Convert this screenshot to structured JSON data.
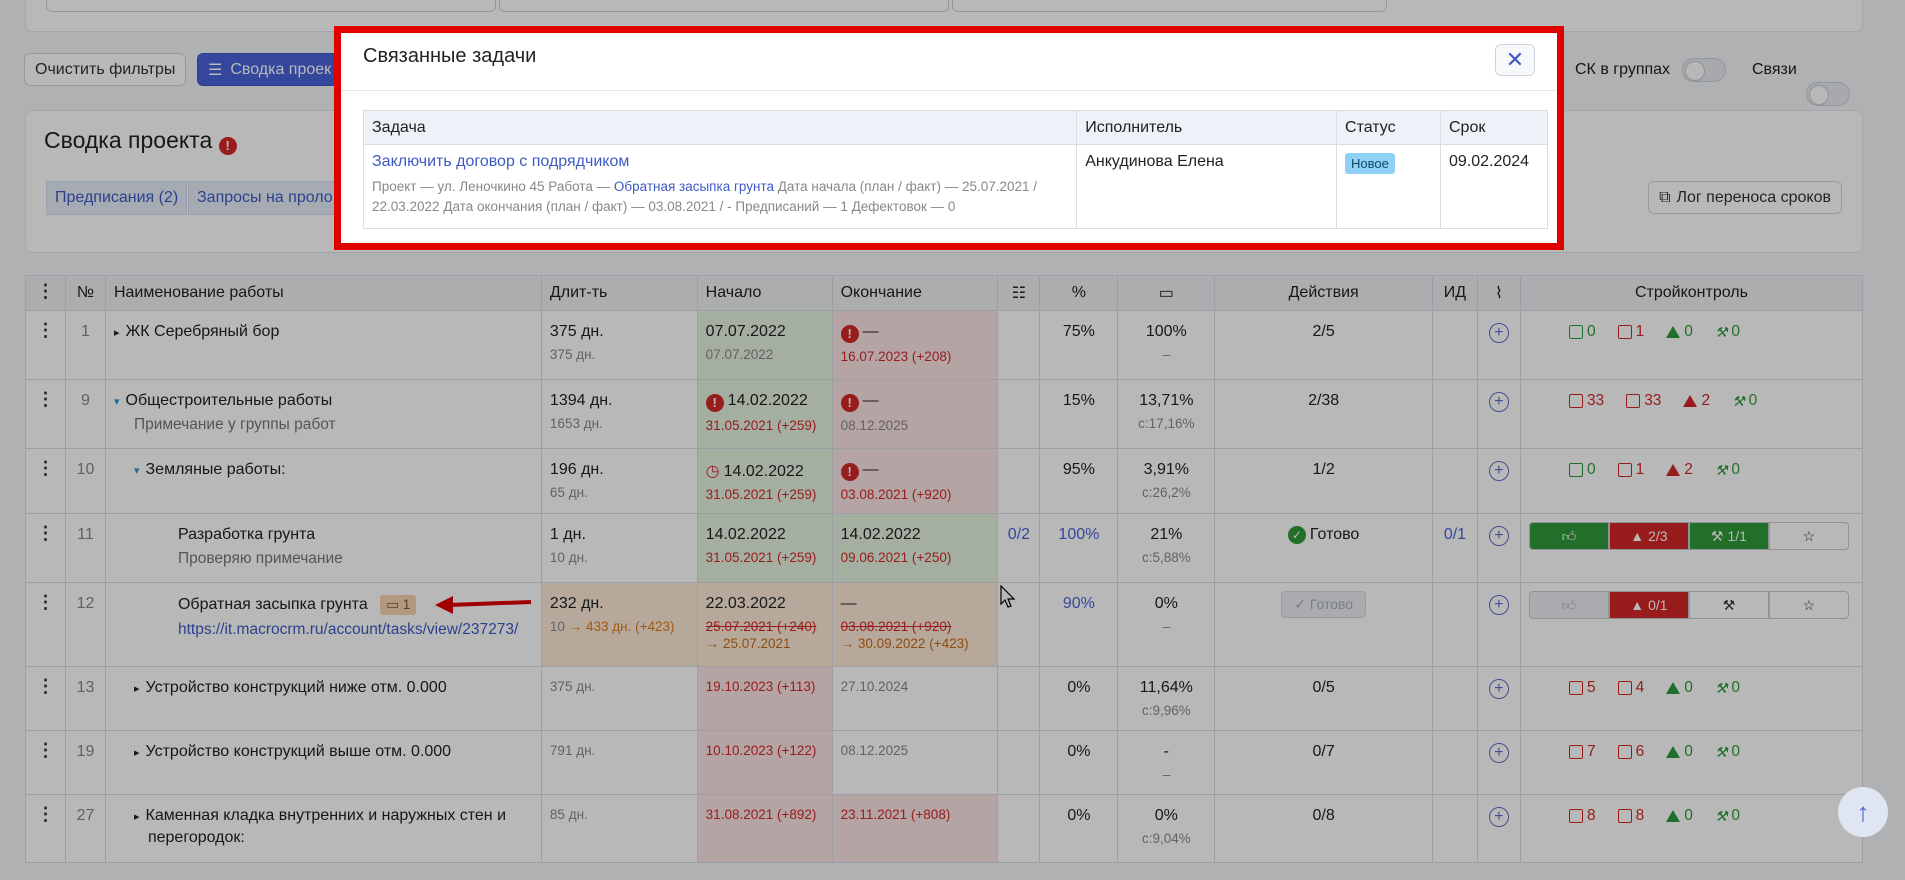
{
  "toolbar": {
    "clear_filters": "Очистить фильтры",
    "summary_btn": "Сводка проек",
    "sk_groups": "СК в группах",
    "links": "Связи"
  },
  "card": {
    "title": "Сводка проекта",
    "tab1": "Предписания (2)",
    "tab2": "Запросы на проло",
    "log_btn": "Лог переноса сроков"
  },
  "grid": {
    "headers": {
      "num": "№",
      "name": "Наименование работы",
      "dur": "Длит-ть",
      "start": "Начало",
      "end": "Окончание",
      "pct": "%",
      "actions": "Действия",
      "id": "ИД",
      "sk": "Стройконтроль"
    },
    "rows": [
      {
        "num": "1",
        "name": "ЖК Серебряный бор",
        "note": "",
        "dur": "375 дн.",
        "dur_sub": "375 дн.",
        "start": "07.07.2022",
        "start_sub": "07.07.2022",
        "end": "—",
        "end_sub": "16.07.2023 (+208)",
        "pct": "75%",
        "c1": "100%",
        "c1_sub": "–",
        "act": "2/5",
        "sk": [
          "0",
          "1",
          "0",
          "0"
        ]
      },
      {
        "num": "9",
        "name": "Общестроительные работы",
        "note": "Примечание у группы работ",
        "dur": "1394 дн.",
        "dur_sub": "1653 дн.",
        "start": "14.02.2022",
        "start_sub": "31.05.2021 (+259)",
        "end": "—",
        "end_sub": "08.12.2025",
        "pct": "15%",
        "c1": "13,71%",
        "c1_sub": "с:17,16%",
        "act": "2/38",
        "sk": [
          "33",
          "33",
          "2",
          "0"
        ]
      },
      {
        "num": "10",
        "name": "Земляные работы:",
        "note": "",
        "dur": "196 дн.",
        "dur_sub": "65 дн.",
        "start": "14.02.2022",
        "start_sub": "31.05.2021 (+259)",
        "end": "—",
        "end_sub": "03.08.2021 (+920)",
        "pct": "95%",
        "c1": "3,91%",
        "c1_sub": "с:26,2%",
        "act": "1/2",
        "sk": [
          "0",
          "1",
          "2",
          "0"
        ]
      },
      {
        "num": "11",
        "name": "Разработка грунта",
        "note": "Проверяю примечание",
        "dur": "1 дн.",
        "dur_sub": "10 дн.",
        "start": "14.02.2022",
        "start_sub": "31.05.2021 (+259)",
        "end": "14.02.2022",
        "end_sub": "09.06.2021 (+250)",
        "checks": "0/2",
        "pct": "100%",
        "c1": "21%",
        "c1_sub": "с:5,88%",
        "act": "Готово",
        "idv": "0/1",
        "sk_warn": "2/3",
        "sk_ham": "1/1"
      },
      {
        "num": "12",
        "name": "Обратная засыпка грунта",
        "badge": "1",
        "link": "https://it.macrocrm.ru/account/tasks/view/237273/",
        "dur": "232 дн.",
        "dur_a": "10",
        "dur_b": "433 дн. (+423)",
        "start": "22.03.2022",
        "start_s": "25.07.2021 (+240)",
        "start_n": "25.07.2021",
        "end": "—",
        "end_s": "03.08.2021 (+920)",
        "end_n": "30.09.2022 (+423)",
        "pct": "90%",
        "c1": "0%",
        "c1_sub": "–",
        "act": "Готово",
        "sk_warn": "0/1"
      },
      {
        "num": "13",
        "name": "Устройство конструкций ниже отм. 0.000",
        "dur_sub": "375 дн.",
        "start_sub": "19.10.2023 (+113)",
        "end_sub": "27.10.2024",
        "pct": "0%",
        "c1": "11,64%",
        "c1_sub": "с:9,96%",
        "act": "0/5",
        "sk": [
          "5",
          "4",
          "0",
          "0"
        ]
      },
      {
        "num": "19",
        "name": "Устройство конструкций выше отм. 0.000",
        "dur_sub": "791 дн.",
        "start_sub": "10.10.2023 (+122)",
        "end_sub": "08.12.2025",
        "pct": "0%",
        "c1": "-",
        "c1_sub": "–",
        "act": "0/7",
        "sk": [
          "7",
          "6",
          "0",
          "0"
        ]
      },
      {
        "num": "27",
        "name": "Каменная кладка внутренних и наружных стен и",
        "name2": "перегородок:",
        "dur_sub": "85 дн.",
        "start_sub": "31.08.2021 (+892)",
        "end_sub": "23.11.2021 (+808)",
        "pct": "0%",
        "c1": "0%",
        "c1_sub": "с:9,04%",
        "act": "0/8",
        "sk": [
          "8",
          "8",
          "0",
          "0"
        ]
      }
    ]
  },
  "modal": {
    "title": "Связанные задачи",
    "col_task": "Задача",
    "col_exec": "Исполнитель",
    "col_status": "Статус",
    "col_due": "Срок",
    "task_link": "Заключить договор с подрядчиком",
    "desc_a": "Проект — ул. Леночкино 45 Работа —",
    "desc_link": "Обратная засыпка грунта",
    "desc_b": "Дата начала (план / факт) — 25.07.2021 /",
    "desc_c": "22.03.2022 Дата окончания (план / факт) — 03.08.2021 / - Предписаний — 1 Дефектовок — 0",
    "executor": "Анкудинова Елена",
    "status": "Новое",
    "due": "09.02.2024"
  },
  "colors": {
    "accent": "#4a63d8",
    "modal_border": "#e00000",
    "danger": "#d42828",
    "success": "#2f9a3a"
  }
}
